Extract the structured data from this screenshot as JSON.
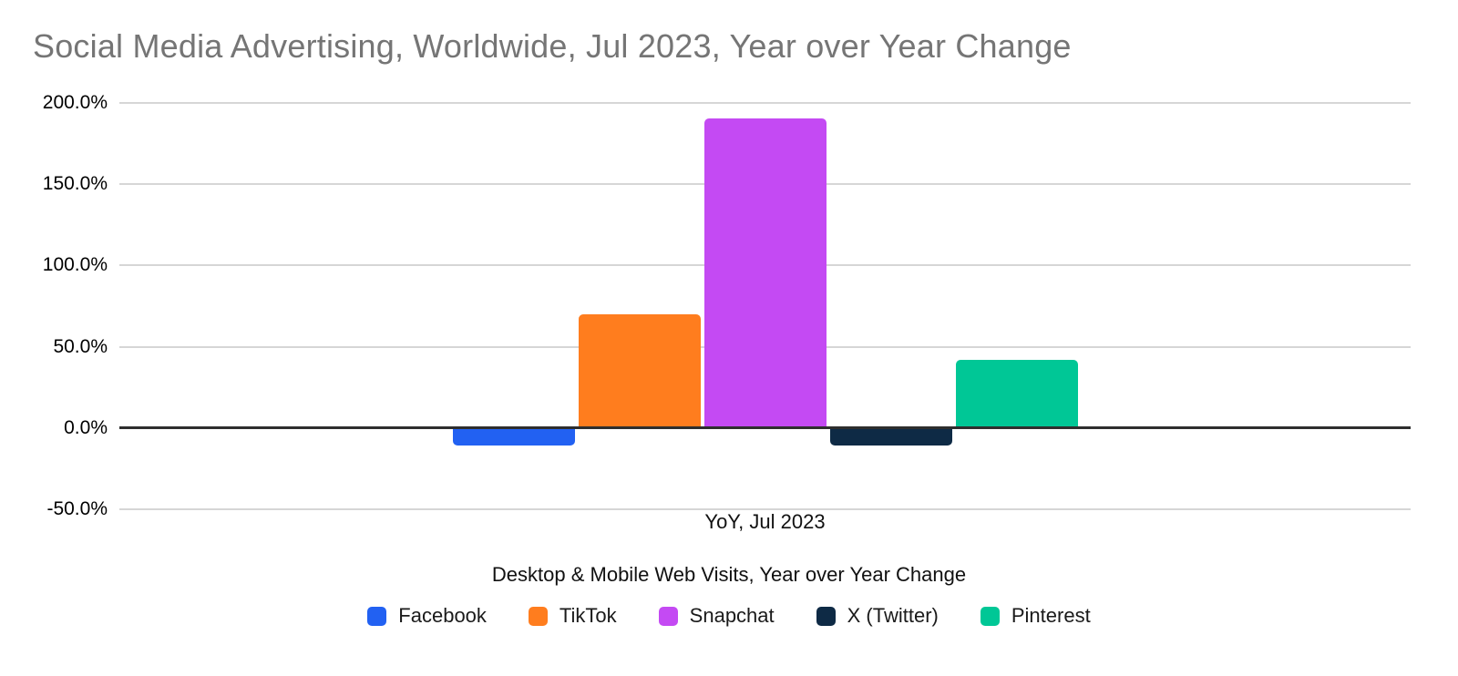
{
  "title": {
    "text": "Social Media Advertising, Worldwide, Jul 2023, Year over Year Change",
    "color": "#757575"
  },
  "chart_data": {
    "type": "bar",
    "title": "Social Media Advertising, Worldwide, Jul 2023, Year over Year Change",
    "categories": [
      "YoY, Jul 2023"
    ],
    "series": [
      {
        "name": "Facebook",
        "color": "#2261F2",
        "values": [
          -10.5
        ]
      },
      {
        "name": "TikTok",
        "color": "#FF7D1E",
        "values": [
          70.0
        ]
      },
      {
        "name": "Snapchat",
        "color": "#C44AF3",
        "values": [
          190.5
        ]
      },
      {
        "name": "X (Twitter)",
        "color": "#0E2A45",
        "values": [
          -11.0
        ]
      },
      {
        "name": "Pinterest",
        "color": "#00C796",
        "values": [
          42.0
        ]
      }
    ],
    "xlabel": "YoY, Jul 2023",
    "sublabel": "Desktop & Mobile Web Visits, Year over Year Change",
    "ylim": [
      -50,
      200
    ],
    "ytick_step": 50,
    "yticks": [
      "200.0%",
      "150.0%",
      "100.0%",
      "50.0%",
      "0.0%",
      "-50.0%"
    ],
    "grid": true,
    "legend_position": "bottom",
    "axis_colors": {
      "gridline": "#d6d6d6",
      "zero_line": "#2e2e2e",
      "tick_text": "#000000"
    }
  }
}
